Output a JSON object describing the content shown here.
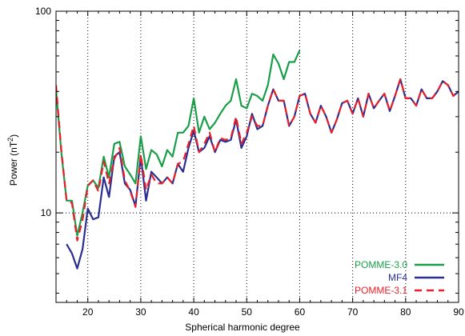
{
  "chart_data": {
    "type": "line",
    "xlabel": "Spherical harmonic degree",
    "ylabel": "Power (nT",
    "ylabel_sup": "2",
    "ylabel_close": ")",
    "xlim": [
      14,
      90
    ],
    "ylim": [
      3.6,
      100
    ],
    "yscale": "log",
    "grid": true,
    "legend_position": "bottom-right",
    "x_ticks": [
      {
        "value": 20,
        "label": "20"
      },
      {
        "value": 30,
        "label": "30"
      },
      {
        "value": 40,
        "label": "40"
      },
      {
        "value": 50,
        "label": "50"
      },
      {
        "value": 60,
        "label": "60"
      },
      {
        "value": 70,
        "label": "70"
      },
      {
        "value": 80,
        "label": "80"
      },
      {
        "value": 90,
        "label": "90"
      }
    ],
    "y_ticks": [
      {
        "value": 10,
        "label": "10"
      },
      {
        "value": 100,
        "label": "100"
      }
    ],
    "series": [
      {
        "name": "POMME-3.0",
        "color": "#1a9e4a",
        "dash": "solid",
        "x": [
          14,
          15,
          16,
          17,
          18,
          19,
          20,
          21,
          22,
          23,
          24,
          25,
          26,
          27,
          28,
          29,
          30,
          31,
          32,
          33,
          34,
          35,
          36,
          37,
          38,
          39,
          40,
          41,
          42,
          43,
          44,
          45,
          46,
          47,
          48,
          49,
          50,
          51,
          52,
          53,
          54,
          55,
          56,
          57,
          58,
          59,
          60
        ],
        "values": [
          41,
          20,
          11.5,
          11.5,
          7.7,
          10,
          13.7,
          14.5,
          13.3,
          19,
          15,
          22,
          22.5,
          17,
          15.5,
          14,
          24,
          16.5,
          20.5,
          19.5,
          17,
          20.5,
          19,
          25,
          25,
          27,
          37,
          25,
          30,
          26,
          28,
          31,
          34,
          36,
          46,
          34,
          33,
          39,
          38,
          36,
          43,
          61,
          55,
          46,
          56,
          56,
          64
        ]
      },
      {
        "name": "MF4",
        "color": "#2a2f8f",
        "dash": "solid",
        "x": [
          16,
          17,
          18,
          19,
          20,
          21,
          22,
          23,
          24,
          25,
          26,
          27,
          28,
          29,
          30,
          31,
          32,
          33,
          34,
          35,
          36,
          37,
          38,
          39,
          40,
          41,
          42,
          43,
          44,
          45,
          46,
          47,
          48,
          49,
          50,
          51,
          52,
          53,
          54,
          55,
          56,
          57,
          58,
          59,
          60,
          61,
          62,
          63,
          64,
          65,
          66,
          67,
          68,
          69,
          70,
          71,
          72,
          73,
          74,
          75,
          76,
          77,
          78,
          79,
          80,
          81,
          82,
          83,
          84,
          85,
          86,
          87,
          88,
          89,
          90
        ],
        "values": [
          7,
          6.3,
          5.3,
          6.6,
          10.5,
          9.3,
          9.5,
          15,
          12,
          19,
          20,
          14,
          13,
          10.8,
          19,
          11.5,
          16,
          15,
          14,
          15,
          14,
          17.5,
          16,
          21,
          25.5,
          20,
          21,
          24,
          20,
          23,
          22.5,
          23,
          29,
          21,
          24,
          31,
          26,
          27,
          34,
          41,
          36,
          36,
          27,
          30,
          38,
          39,
          31,
          28,
          34,
          30,
          25,
          29,
          35,
          36,
          31,
          37,
          30,
          39,
          33,
          36,
          39,
          32,
          38,
          46,
          37,
          37,
          34,
          41,
          37,
          37,
          40,
          45,
          43,
          38,
          40
        ]
      },
      {
        "name": "POMME-3.1",
        "color": "#e8202a",
        "dash": "dashed",
        "x": [
          14,
          15,
          16,
          17,
          18,
          19,
          20,
          21,
          22,
          23,
          24,
          25,
          26,
          27,
          28,
          29,
          30,
          31,
          32,
          33,
          34,
          35,
          36,
          37,
          38,
          39,
          40,
          41,
          42,
          43,
          44,
          45,
          46,
          47,
          48,
          49,
          50,
          51,
          52,
          53,
          54,
          55,
          56,
          57,
          58,
          59,
          60,
          61,
          62,
          63,
          64,
          65,
          66,
          67,
          68,
          69,
          70,
          71,
          72,
          73,
          74,
          75,
          76,
          77,
          78,
          79,
          80,
          81,
          82,
          83,
          84,
          85,
          86,
          87,
          88,
          89,
          90
        ],
        "values": [
          43,
          20.5,
          11.5,
          11.2,
          7.3,
          9.2,
          13.6,
          14.5,
          12.8,
          18,
          14,
          18.5,
          21,
          14.5,
          12.8,
          10.7,
          19.5,
          13,
          15.5,
          14,
          14,
          15,
          14,
          17.5,
          18,
          22,
          27,
          20,
          22,
          25,
          20,
          23.5,
          23,
          23.5,
          30,
          22,
          25,
          30,
          27,
          27,
          34,
          41,
          36,
          36,
          27,
          30,
          38,
          39,
          31,
          28,
          34,
          30,
          25,
          29,
          35,
          36,
          31,
          37,
          30,
          39,
          33,
          36,
          39,
          32,
          38,
          46,
          37,
          37,
          34,
          41,
          37,
          37,
          40,
          45,
          43,
          38,
          40
        ]
      }
    ]
  }
}
